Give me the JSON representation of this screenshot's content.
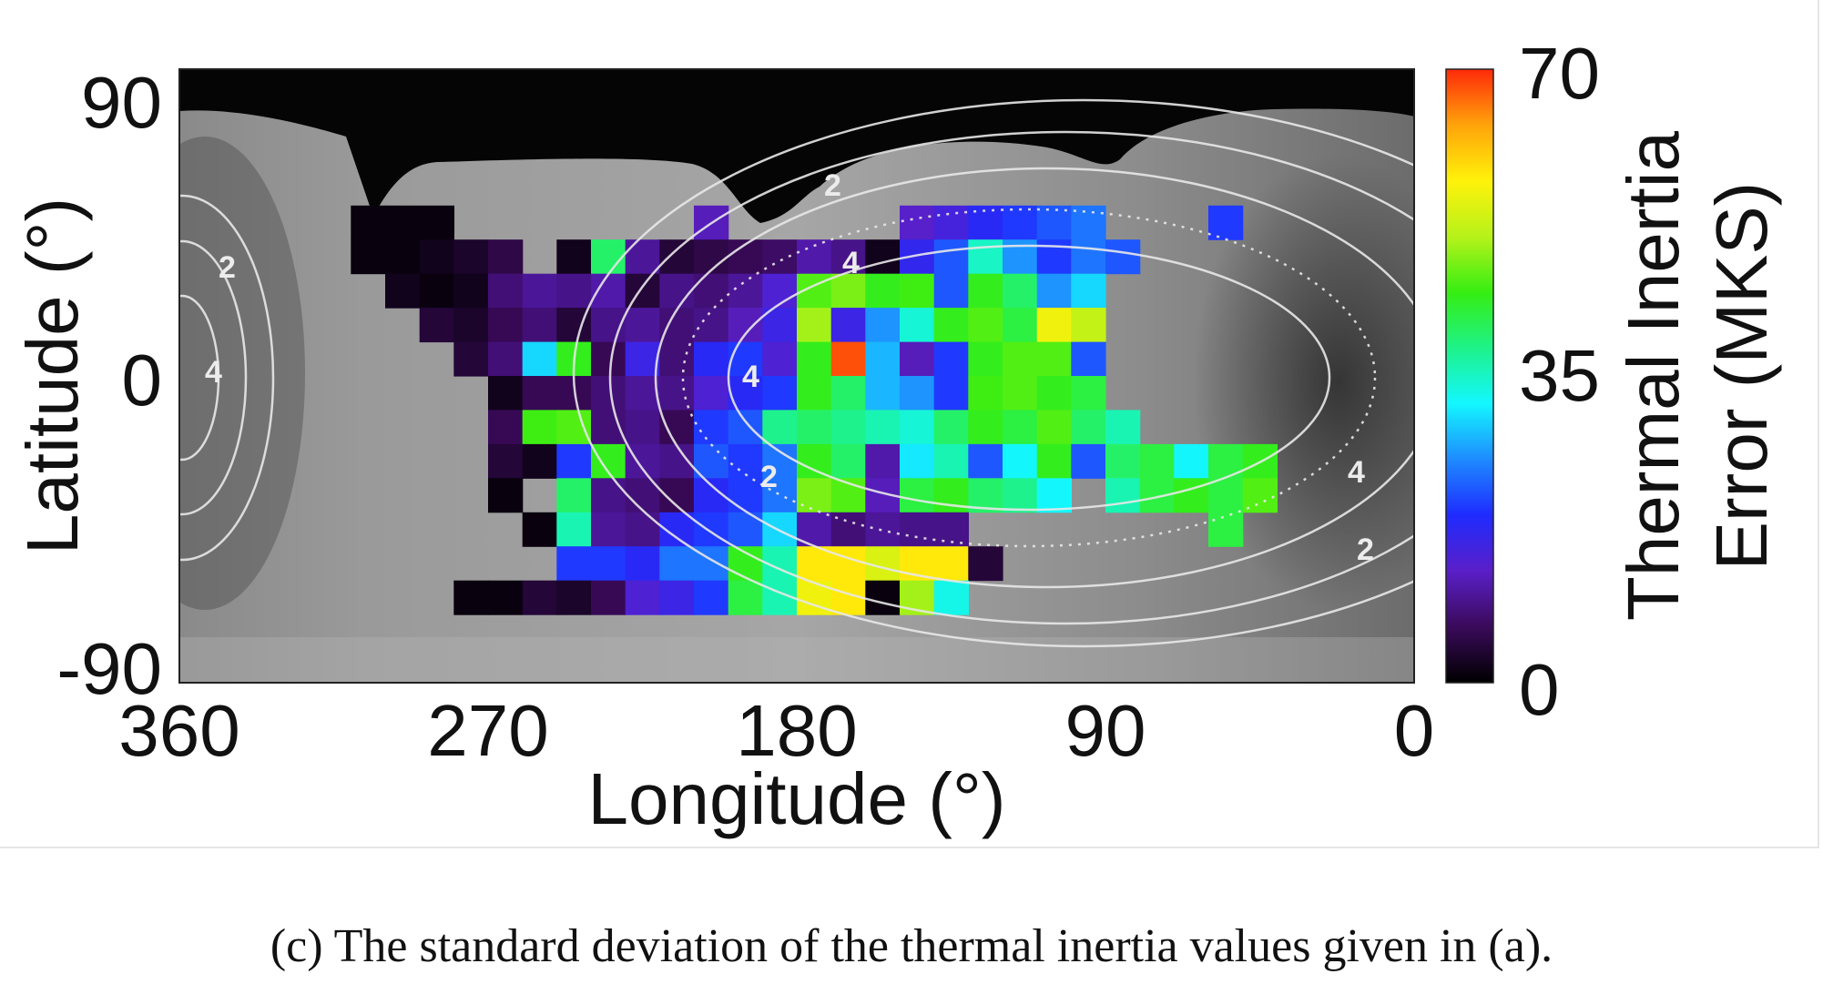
{
  "caption": "(c) The standard deviation of the thermal inertia values given in (a).",
  "chart_data": {
    "type": "heatmap",
    "title": "",
    "xlabel": "Longitude (°)",
    "ylabel": "Latitude (°)",
    "xlim": [
      360,
      0
    ],
    "ylim": [
      -90,
      90
    ],
    "x_ticks": [
      "360",
      "270",
      "180",
      "90",
      "0"
    ],
    "y_ticks": [
      "90",
      "0",
      "-90"
    ],
    "grid": false,
    "background": "grayscale surface map (dark polar region at top)",
    "colorbar": {
      "label": "Thermal Inertia Error (MKS)",
      "label_lines": [
        "Thermal Inertia",
        "Error (MKS)"
      ],
      "range": [
        0,
        70
      ],
      "ticks": [
        "70",
        "35",
        "0"
      ],
      "colormap": [
        "#000000",
        "#3a0a5a",
        "#5a1fc8",
        "#1f2bff",
        "#1e8bff",
        "#13f7ff",
        "#1ef28a",
        "#35ee12",
        "#b6f21a",
        "#fff20a",
        "#ffa30a",
        "#ff2a0a"
      ]
    },
    "contour_labels": [
      "2",
      "4",
      "4",
      "2",
      "2",
      "4",
      "4",
      "2"
    ],
    "cell_size_deg": 10,
    "cells": [
      {
        "lon": 305,
        "lat": 45,
        "v": 1
      },
      {
        "lon": 295,
        "lat": 45,
        "v": 1
      },
      {
        "lon": 285,
        "lat": 45,
        "v": 1
      },
      {
        "lon": 205,
        "lat": 45,
        "v": 12
      },
      {
        "lon": 145,
        "lat": 45,
        "v": 13
      },
      {
        "lon": 135,
        "lat": 45,
        "v": 15
      },
      {
        "lon": 125,
        "lat": 45,
        "v": 18
      },
      {
        "lon": 115,
        "lat": 45,
        "v": 20
      },
      {
        "lon": 105,
        "lat": 45,
        "v": 22
      },
      {
        "lon": 95,
        "lat": 45,
        "v": 24
      },
      {
        "lon": 55,
        "lat": 45,
        "v": 20
      },
      {
        "lon": 305,
        "lat": 35,
        "v": 1
      },
      {
        "lon": 295,
        "lat": 35,
        "v": 1
      },
      {
        "lon": 285,
        "lat": 35,
        "v": 2
      },
      {
        "lon": 275,
        "lat": 35,
        "v": 3
      },
      {
        "lon": 265,
        "lat": 35,
        "v": 5
      },
      {
        "lon": 245,
        "lat": 35,
        "v": 2
      },
      {
        "lon": 235,
        "lat": 35,
        "v": 40
      },
      {
        "lon": 225,
        "lat": 35,
        "v": 10
      },
      {
        "lon": 215,
        "lat": 35,
        "v": 4
      },
      {
        "lon": 205,
        "lat": 35,
        "v": 5
      },
      {
        "lon": 195,
        "lat": 35,
        "v": 6
      },
      {
        "lon": 185,
        "lat": 35,
        "v": 7
      },
      {
        "lon": 175,
        "lat": 35,
        "v": 11
      },
      {
        "lon": 165,
        "lat": 35,
        "v": 9
      },
      {
        "lon": 155,
        "lat": 35,
        "v": 2
      },
      {
        "lon": 145,
        "lat": 35,
        "v": 17
      },
      {
        "lon": 135,
        "lat": 35,
        "v": 22
      },
      {
        "lon": 125,
        "lat": 35,
        "v": 35
      },
      {
        "lon": 115,
        "lat": 35,
        "v": 26
      },
      {
        "lon": 105,
        "lat": 35,
        "v": 20
      },
      {
        "lon": 95,
        "lat": 35,
        "v": 24
      },
      {
        "lon": 85,
        "lat": 35,
        "v": 22
      },
      {
        "lon": 295,
        "lat": 25,
        "v": 2
      },
      {
        "lon": 285,
        "lat": 25,
        "v": 1
      },
      {
        "lon": 275,
        "lat": 25,
        "v": 2
      },
      {
        "lon": 265,
        "lat": 25,
        "v": 8
      },
      {
        "lon": 255,
        "lat": 25,
        "v": 10
      },
      {
        "lon": 245,
        "lat": 25,
        "v": 9
      },
      {
        "lon": 235,
        "lat": 25,
        "v": 11
      },
      {
        "lon": 225,
        "lat": 25,
        "v": 4
      },
      {
        "lon": 215,
        "lat": 25,
        "v": 9
      },
      {
        "lon": 205,
        "lat": 25,
        "v": 8
      },
      {
        "lon": 195,
        "lat": 25,
        "v": 10
      },
      {
        "lon": 185,
        "lat": 25,
        "v": 14
      },
      {
        "lon": 175,
        "lat": 25,
        "v": 46
      },
      {
        "lon": 165,
        "lat": 25,
        "v": 48
      },
      {
        "lon": 155,
        "lat": 25,
        "v": 44
      },
      {
        "lon": 145,
        "lat": 25,
        "v": 45
      },
      {
        "lon": 135,
        "lat": 25,
        "v": 22
      },
      {
        "lon": 125,
        "lat": 25,
        "v": 44
      },
      {
        "lon": 115,
        "lat": 25,
        "v": 40
      },
      {
        "lon": 105,
        "lat": 25,
        "v": 26
      },
      {
        "lon": 95,
        "lat": 25,
        "v": 30
      },
      {
        "lon": 285,
        "lat": 15,
        "v": 4
      },
      {
        "lon": 275,
        "lat": 15,
        "v": 3
      },
      {
        "lon": 265,
        "lat": 15,
        "v": 6
      },
      {
        "lon": 255,
        "lat": 15,
        "v": 8
      },
      {
        "lon": 245,
        "lat": 15,
        "v": 4
      },
      {
        "lon": 235,
        "lat": 15,
        "v": 9
      },
      {
        "lon": 225,
        "lat": 15,
        "v": 10
      },
      {
        "lon": 215,
        "lat": 15,
        "v": 8
      },
      {
        "lon": 205,
        "lat": 15,
        "v": 9
      },
      {
        "lon": 195,
        "lat": 15,
        "v": 12
      },
      {
        "lon": 185,
        "lat": 15,
        "v": 16
      },
      {
        "lon": 175,
        "lat": 15,
        "v": 50
      },
      {
        "lon": 165,
        "lat": 15,
        "v": 16
      },
      {
        "lon": 155,
        "lat": 15,
        "v": 26
      },
      {
        "lon": 145,
        "lat": 15,
        "v": 34
      },
      {
        "lon": 135,
        "lat": 15,
        "v": 44
      },
      {
        "lon": 125,
        "lat": 15,
        "v": 46
      },
      {
        "lon": 115,
        "lat": 15,
        "v": 42
      },
      {
        "lon": 105,
        "lat": 15,
        "v": 56
      },
      {
        "lon": 95,
        "lat": 15,
        "v": 52
      },
      {
        "lon": 275,
        "lat": 5,
        "v": 4
      },
      {
        "lon": 265,
        "lat": 5,
        "v": 8
      },
      {
        "lon": 255,
        "lat": 5,
        "v": 30
      },
      {
        "lon": 245,
        "lat": 5,
        "v": 44
      },
      {
        "lon": 235,
        "lat": 5,
        "v": 6
      },
      {
        "lon": 225,
        "lat": 5,
        "v": 16
      },
      {
        "lon": 215,
        "lat": 5,
        "v": 8
      },
      {
        "lon": 205,
        "lat": 5,
        "v": 18
      },
      {
        "lon": 195,
        "lat": 5,
        "v": 20
      },
      {
        "lon": 185,
        "lat": 5,
        "v": 14
      },
      {
        "lon": 175,
        "lat": 5,
        "v": 44
      },
      {
        "lon": 165,
        "lat": 5,
        "v": 68
      },
      {
        "lon": 155,
        "lat": 5,
        "v": 28
      },
      {
        "lon": 145,
        "lat": 5,
        "v": 12
      },
      {
        "lon": 135,
        "lat": 5,
        "v": 20
      },
      {
        "lon": 125,
        "lat": 5,
        "v": 44
      },
      {
        "lon": 115,
        "lat": 5,
        "v": 46
      },
      {
        "lon": 105,
        "lat": 5,
        "v": 46
      },
      {
        "lon": 95,
        "lat": 5,
        "v": 22
      },
      {
        "lon": 265,
        "lat": -5,
        "v": 2
      },
      {
        "lon": 255,
        "lat": -5,
        "v": 6
      },
      {
        "lon": 245,
        "lat": -5,
        "v": 6
      },
      {
        "lon": 235,
        "lat": -5,
        "v": 8
      },
      {
        "lon": 225,
        "lat": -5,
        "v": 10
      },
      {
        "lon": 215,
        "lat": -5,
        "v": 9
      },
      {
        "lon": 205,
        "lat": -5,
        "v": 14
      },
      {
        "lon": 195,
        "lat": -5,
        "v": 18
      },
      {
        "lon": 185,
        "lat": -5,
        "v": 20
      },
      {
        "lon": 175,
        "lat": -5,
        "v": 44
      },
      {
        "lon": 165,
        "lat": -5,
        "v": 40
      },
      {
        "lon": 155,
        "lat": -5,
        "v": 28
      },
      {
        "lon": 145,
        "lat": -5,
        "v": 26
      },
      {
        "lon": 135,
        "lat": -5,
        "v": 20
      },
      {
        "lon": 125,
        "lat": -5,
        "v": 45
      },
      {
        "lon": 115,
        "lat": -5,
        "v": 46
      },
      {
        "lon": 105,
        "lat": -5,
        "v": 44
      },
      {
        "lon": 95,
        "lat": -5,
        "v": 42
      },
      {
        "lon": 265,
        "lat": -15,
        "v": 6
      },
      {
        "lon": 255,
        "lat": -15,
        "v": 45
      },
      {
        "lon": 245,
        "lat": -15,
        "v": 46
      },
      {
        "lon": 235,
        "lat": -15,
        "v": 8
      },
      {
        "lon": 225,
        "lat": -15,
        "v": 9
      },
      {
        "lon": 215,
        "lat": -15,
        "v": 6
      },
      {
        "lon": 205,
        "lat": -15,
        "v": 20
      },
      {
        "lon": 195,
        "lat": -15,
        "v": 22
      },
      {
        "lon": 185,
        "lat": -15,
        "v": 38
      },
      {
        "lon": 175,
        "lat": -15,
        "v": 40
      },
      {
        "lon": 165,
        "lat": -15,
        "v": 38
      },
      {
        "lon": 155,
        "lat": -15,
        "v": 36
      },
      {
        "lon": 145,
        "lat": -15,
        "v": 34
      },
      {
        "lon": 135,
        "lat": -15,
        "v": 40
      },
      {
        "lon": 125,
        "lat": -15,
        "v": 44
      },
      {
        "lon": 115,
        "lat": -15,
        "v": 42
      },
      {
        "lon": 105,
        "lat": -15,
        "v": 46
      },
      {
        "lon": 95,
        "lat": -15,
        "v": 40
      },
      {
        "lon": 85,
        "lat": -15,
        "v": 36
      },
      {
        "lon": 265,
        "lat": -25,
        "v": 4
      },
      {
        "lon": 255,
        "lat": -25,
        "v": 2
      },
      {
        "lon": 245,
        "lat": -25,
        "v": 20
      },
      {
        "lon": 235,
        "lat": -25,
        "v": 44
      },
      {
        "lon": 225,
        "lat": -25,
        "v": 10
      },
      {
        "lon": 215,
        "lat": -25,
        "v": 9
      },
      {
        "lon": 205,
        "lat": -25,
        "v": 22
      },
      {
        "lon": 195,
        "lat": -25,
        "v": 20
      },
      {
        "lon": 185,
        "lat": -25,
        "v": 24
      },
      {
        "lon": 175,
        "lat": -25,
        "v": 44
      },
      {
        "lon": 165,
        "lat": -25,
        "v": 40
      },
      {
        "lon": 155,
        "lat": -25,
        "v": 11
      },
      {
        "lon": 145,
        "lat": -25,
        "v": 31
      },
      {
        "lon": 135,
        "lat": -25,
        "v": 36
      },
      {
        "lon": 125,
        "lat": -25,
        "v": 22
      },
      {
        "lon": 115,
        "lat": -25,
        "v": 32
      },
      {
        "lon": 105,
        "lat": -25,
        "v": 44
      },
      {
        "lon": 95,
        "lat": -25,
        "v": 22
      },
      {
        "lon": 85,
        "lat": -25,
        "v": 40
      },
      {
        "lon": 75,
        "lat": -25,
        "v": 42
      },
      {
        "lon": 65,
        "lat": -25,
        "v": 32
      },
      {
        "lon": 55,
        "lat": -25,
        "v": 42
      },
      {
        "lon": 45,
        "lat": -25,
        "v": 44
      },
      {
        "lon": 265,
        "lat": -35,
        "v": 1
      },
      {
        "lon": 245,
        "lat": -35,
        "v": 40
      },
      {
        "lon": 235,
        "lat": -35,
        "v": 9
      },
      {
        "lon": 225,
        "lat": -35,
        "v": 8
      },
      {
        "lon": 215,
        "lat": -35,
        "v": 6
      },
      {
        "lon": 205,
        "lat": -35,
        "v": 18
      },
      {
        "lon": 195,
        "lat": -35,
        "v": 20
      },
      {
        "lon": 185,
        "lat": -35,
        "v": 24
      },
      {
        "lon": 175,
        "lat": -35,
        "v": 48
      },
      {
        "lon": 165,
        "lat": -35,
        "v": 46
      },
      {
        "lon": 155,
        "lat": -35,
        "v": 12
      },
      {
        "lon": 145,
        "lat": -35,
        "v": 42
      },
      {
        "lon": 135,
        "lat": -35,
        "v": 44
      },
      {
        "lon": 125,
        "lat": -35,
        "v": 40
      },
      {
        "lon": 115,
        "lat": -35,
        "v": 38
      },
      {
        "lon": 105,
        "lat": -35,
        "v": 32
      },
      {
        "lon": 85,
        "lat": -35,
        "v": 36
      },
      {
        "lon": 75,
        "lat": -35,
        "v": 42
      },
      {
        "lon": 65,
        "lat": -35,
        "v": 44
      },
      {
        "lon": 55,
        "lat": -35,
        "v": 42
      },
      {
        "lon": 45,
        "lat": -35,
        "v": 46
      },
      {
        "lon": 255,
        "lat": -45,
        "v": 1
      },
      {
        "lon": 245,
        "lat": -45,
        "v": 36
      },
      {
        "lon": 235,
        "lat": -45,
        "v": 10
      },
      {
        "lon": 225,
        "lat": -45,
        "v": 9
      },
      {
        "lon": 215,
        "lat": -45,
        "v": 18
      },
      {
        "lon": 205,
        "lat": -45,
        "v": 20
      },
      {
        "lon": 195,
        "lat": -45,
        "v": 22
      },
      {
        "lon": 185,
        "lat": -45,
        "v": 30
      },
      {
        "lon": 175,
        "lat": -45,
        "v": 11
      },
      {
        "lon": 165,
        "lat": -45,
        "v": 8
      },
      {
        "lon": 155,
        "lat": -45,
        "v": 10
      },
      {
        "lon": 145,
        "lat": -45,
        "v": 9
      },
      {
        "lon": 135,
        "lat": -45,
        "v": 9
      },
      {
        "lon": 55,
        "lat": -45,
        "v": 42
      },
      {
        "lon": 245,
        "lat": -55,
        "v": 20
      },
      {
        "lon": 235,
        "lat": -55,
        "v": 20
      },
      {
        "lon": 225,
        "lat": -55,
        "v": 18
      },
      {
        "lon": 215,
        "lat": -55,
        "v": 24
      },
      {
        "lon": 205,
        "lat": -55,
        "v": 24
      },
      {
        "lon": 195,
        "lat": -55,
        "v": 44
      },
      {
        "lon": 185,
        "lat": -55,
        "v": 36
      },
      {
        "lon": 175,
        "lat": -55,
        "v": 58
      },
      {
        "lon": 165,
        "lat": -55,
        "v": 58
      },
      {
        "lon": 155,
        "lat": -55,
        "v": 54
      },
      {
        "lon": 145,
        "lat": -55,
        "v": 58
      },
      {
        "lon": 135,
        "lat": -55,
        "v": 58
      },
      {
        "lon": 125,
        "lat": -55,
        "v": 4
      },
      {
        "lon": 275,
        "lat": -65,
        "v": 1
      },
      {
        "lon": 265,
        "lat": -65,
        "v": 1
      },
      {
        "lon": 255,
        "lat": -65,
        "v": 4
      },
      {
        "lon": 245,
        "lat": -65,
        "v": 3
      },
      {
        "lon": 235,
        "lat": -65,
        "v": 6
      },
      {
        "lon": 225,
        "lat": -65,
        "v": 14
      },
      {
        "lon": 215,
        "lat": -65,
        "v": 16
      },
      {
        "lon": 205,
        "lat": -65,
        "v": 20
      },
      {
        "lon": 195,
        "lat": -65,
        "v": 42
      },
      {
        "lon": 185,
        "lat": -65,
        "v": 36
      },
      {
        "lon": 175,
        "lat": -65,
        "v": 56
      },
      {
        "lon": 165,
        "lat": -65,
        "v": 58
      },
      {
        "lon": 155,
        "lat": -65,
        "v": 1
      },
      {
        "lon": 145,
        "lat": -65,
        "v": 50
      },
      {
        "lon": 135,
        "lat": -65,
        "v": 33
      }
    ]
  }
}
